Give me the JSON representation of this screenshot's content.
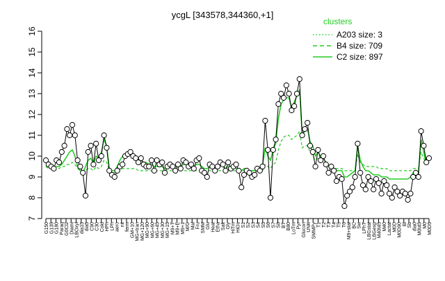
{
  "chart_data": {
    "type": "line",
    "title": "ycgL [343578,344360,+1]",
    "xlabel": "",
    "ylabel": "",
    "ylim": [
      7,
      16
    ],
    "yticks": [
      7,
      8,
      9,
      10,
      11,
      12,
      13,
      14,
      15,
      16
    ],
    "grid": false,
    "legend": {
      "title": "clusters",
      "position": "top-right",
      "entries": [
        {
          "label": "A203 size: 3",
          "style": "dotted",
          "color": "#22cc22"
        },
        {
          "label": "B4 size: 709",
          "style": "dashed",
          "color": "#22cc22"
        },
        {
          "label": "C2 size: 897",
          "style": "solid",
          "color": "#22cc22"
        }
      ]
    },
    "xtick_labels": [
      "G150",
      "G135",
      "G180",
      "Paraq",
      "G0Cl2",
      "Diami",
      "LBOxyl",
      "dia15",
      "dia5",
      "C90",
      "C30",
      "Cold",
      "HPh",
      "LPh",
      "aero",
      "nit",
      "ferm",
      "GM+10",
      "MG+tran",
      "MG+120",
      "MG+90",
      "MG+60",
      "MG+45",
      "MG+30",
      "MG+15",
      "M9+T",
      "M9+E",
      "M9+1",
      "M/G",
      "Mal",
      "Fru",
      "SMM",
      "Glu",
      "Heat",
      "Etha",
      "Salt",
      "Gly",
      "HiTm",
      "HiOs",
      "S1",
      "S2",
      "S3",
      "S4",
      "S5",
      "S6",
      "S7",
      "S8",
      "BT",
      "B80",
      "LoTm",
      "Pyr",
      "Glucon",
      "UNK",
      "SMMPy",
      "T1",
      "T2",
      "T3",
      "T4",
      "T5",
      "T6",
      "M9+stat",
      "BC",
      "Sw",
      "LPhT",
      "LBGstat",
      "LBGexp",
      "M40t45",
      "M40",
      "Lactat",
      "M0D",
      "M0D90",
      "Bl",
      "Sb",
      "dia0",
      "M0t45",
      "M0",
      "M0D5"
    ],
    "series": [
      {
        "name": "",
        "style": "line-with-points",
        "values": [
          9.8,
          9.6,
          9.5,
          9.4,
          9.8,
          9.7,
          10.2,
          10.5,
          11.3,
          11.0,
          11.5,
          11.0,
          9.8,
          9.5,
          9.2,
          8.1,
          10.2,
          10.5,
          9.6,
          10.6,
          9.8,
          10.0,
          11.0,
          10.4,
          9.3,
          9.1,
          9.0,
          9.3,
          9.5,
          9.6,
          10.0,
          10.1,
          10.2,
          10.0,
          9.9,
          9.7,
          9.9,
          9.6,
          9.5,
          9.5,
          9.8,
          9.3,
          9.8,
          9.6,
          9.7,
          9.2,
          9.5,
          9.6,
          9.5,
          9.3,
          9.6,
          9.4,
          9.8,
          9.7,
          9.5,
          9.6,
          9.4,
          9.8,
          9.9,
          9.3,
          9.2,
          9.0,
          9.6,
          9.5,
          9.3,
          9.5,
          9.7,
          9.6,
          9.3,
          9.7,
          9.4,
          9.5,
          9.6,
          9.3,
          8.5,
          9.1,
          9.3,
          9.2,
          9.0,
          9.1,
          9.4,
          9.3,
          9.5,
          11.7,
          10.3,
          8.0,
          10.3,
          10.8,
          12.5,
          13.0,
          12.8,
          13.4,
          13.0,
          12.2,
          12.4,
          13.0,
          13.7,
          11.0,
          11.3,
          11.6,
          10.5,
          10.2,
          9.5,
          10.3,
          9.8,
          10.0,
          9.6,
          9.2,
          9.5,
          9.3,
          8.8,
          9.0,
          8.9,
          7.6,
          8.1,
          8.3,
          8.5,
          9.0,
          10.6,
          9.2,
          8.6,
          8.4,
          9.0,
          8.8,
          8.4,
          8.9,
          8.7,
          8.2,
          8.8,
          8.6,
          8.2,
          8.0,
          8.5,
          8.3,
          8.1,
          8.3,
          8.2,
          7.9,
          8.2,
          9.0,
          9.2,
          9.0,
          11.2,
          10.5,
          9.7,
          9.9
        ]
      },
      {
        "name": "",
        "style": "solid",
        "values": [
          9.5,
          9.5,
          9.4,
          9.4,
          9.5,
          9.5,
          9.6,
          9.8,
          10.0,
          10.2,
          10.3,
          10.0,
          9.5,
          9.3,
          9.2,
          9.5,
          9.8,
          9.9,
          9.6,
          10.0,
          9.9,
          10.2,
          10.8,
          10.5,
          9.4,
          9.3,
          9.3,
          9.5,
          9.8,
          10.0,
          10.1,
          10.0,
          10.1,
          10.0,
          9.9,
          9.8,
          9.8,
          9.7,
          9.7,
          9.6,
          9.6,
          9.5,
          9.5,
          9.5,
          9.5,
          9.4,
          9.5,
          9.6,
          9.6,
          9.5,
          9.5,
          9.5,
          9.6,
          9.6,
          9.5,
          9.6,
          9.5,
          9.6,
          9.6,
          9.5,
          9.4,
          9.4,
          9.5,
          9.5,
          9.4,
          9.5,
          9.6,
          9.5,
          9.4,
          9.5,
          9.5,
          9.5,
          9.4,
          9.4,
          9.3,
          9.4,
          9.4,
          9.3,
          9.3,
          9.3,
          9.4,
          9.4,
          9.5,
          10.4,
          10.0,
          9.8,
          10.3,
          10.6,
          11.8,
          12.5,
          12.7,
          12.8,
          12.8,
          12.3,
          12.6,
          12.9,
          13.2,
          11.0,
          11.2,
          11.3,
          10.7,
          10.5,
          10.0,
          10.2,
          10.0,
          9.9,
          9.7,
          9.5,
          9.5,
          9.4,
          9.3,
          9.3,
          9.3,
          9.0,
          9.0,
          9.1,
          9.2,
          9.3,
          10.5,
          9.8,
          9.5,
          9.3,
          9.3,
          9.2,
          9.1,
          9.1,
          9.1,
          9.0,
          9.0,
          9.0,
          8.9,
          8.9,
          8.9,
          8.9,
          8.9,
          8.9,
          8.9,
          8.9,
          9.0,
          9.2,
          9.3,
          9.2,
          10.8,
          10.2,
          9.6,
          9.7
        ]
      },
      {
        "name": "",
        "style": "dashed",
        "values": [
          9.5,
          9.4,
          9.4,
          9.3,
          9.4,
          9.4,
          9.5,
          9.5,
          9.6,
          9.6,
          9.7,
          9.6,
          9.4,
          9.3,
          9.3,
          9.3,
          9.4,
          9.4,
          9.3,
          9.5,
          9.4,
          9.5,
          9.8,
          9.7,
          9.3,
          9.2,
          9.2,
          9.3,
          9.3,
          9.4,
          9.4,
          9.4,
          9.4,
          9.4,
          9.4,
          9.3,
          9.3,
          9.3,
          9.3,
          9.3,
          9.3,
          9.3,
          9.3,
          9.3,
          9.3,
          9.3,
          9.3,
          9.3,
          9.3,
          9.3,
          9.3,
          9.3,
          9.3,
          9.3,
          9.3,
          9.3,
          9.3,
          9.3,
          9.3,
          9.3,
          9.3,
          9.3,
          9.3,
          9.3,
          9.3,
          9.3,
          9.3,
          9.3,
          9.3,
          9.3,
          9.3,
          9.3,
          9.3,
          9.3,
          9.3,
          9.3,
          9.3,
          9.3,
          9.3,
          9.3,
          9.3,
          9.3,
          9.3,
          9.6,
          9.5,
          9.4,
          9.6,
          9.7,
          10.3,
          10.7,
          10.9,
          11.0,
          11.0,
          10.8,
          10.9,
          11.0,
          11.2,
          10.4,
          10.5,
          10.5,
          10.2,
          10.0,
          9.8,
          9.9,
          9.7,
          9.7,
          9.6,
          9.5,
          9.5,
          9.4,
          9.4,
          9.4,
          9.4,
          9.3,
          9.3,
          9.3,
          9.3,
          9.3,
          10.1,
          9.7,
          9.6,
          9.5,
          9.5,
          9.5,
          9.5,
          9.5,
          9.4,
          9.4,
          9.4,
          9.4,
          9.3,
          9.3,
          9.3,
          9.3,
          9.3,
          9.3,
          9.3,
          9.3,
          9.3,
          9.4,
          9.4,
          9.4,
          10.2,
          9.9,
          9.6,
          9.7
        ]
      }
    ]
  }
}
